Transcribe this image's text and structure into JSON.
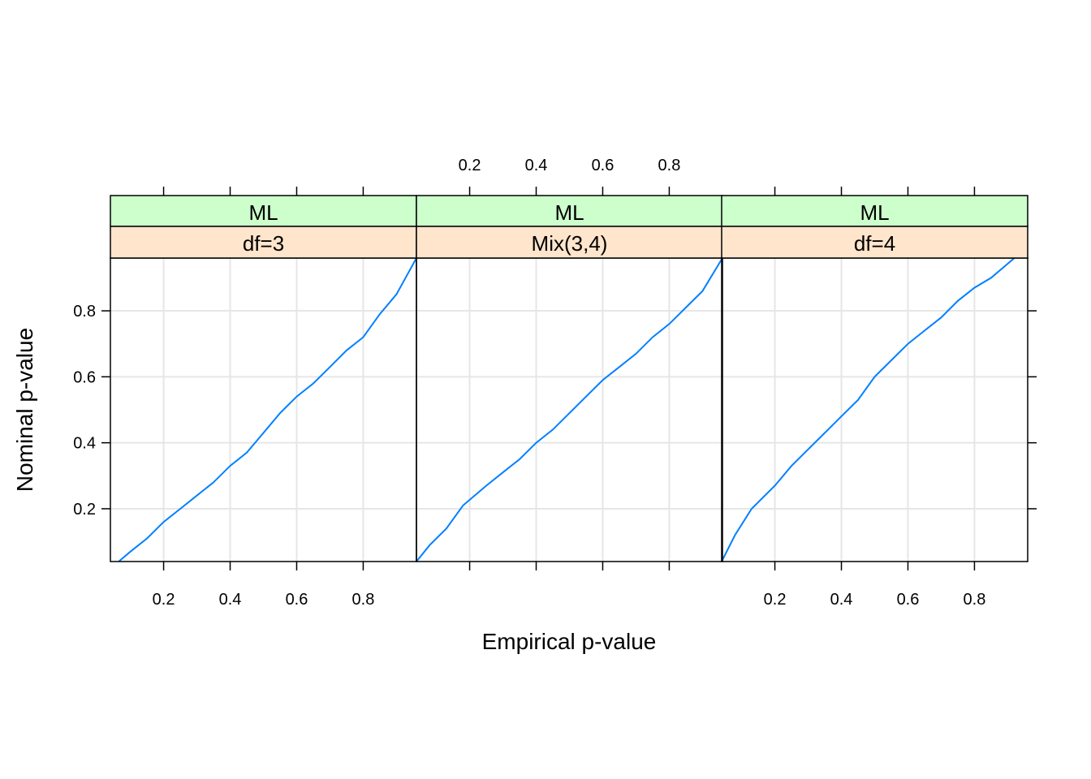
{
  "chart_data": {
    "type": "line",
    "xlabel": "Empirical p-value",
    "ylabel": "Nominal p-value",
    "xlim": [
      0.04,
      0.96
    ],
    "ylim": [
      0.04,
      0.96
    ],
    "x_ticks": [
      "0.2",
      "0.4",
      "0.6",
      "0.8"
    ],
    "y_ticks": [
      "0.2",
      "0.4",
      "0.6",
      "0.8"
    ],
    "grid": true,
    "strip_colors": {
      "outer": "#CCFFCC",
      "inner": "#FFE5CC"
    },
    "line_color": "#0080FF",
    "panels": [
      {
        "strip_outer": "ML",
        "strip_inner": "df=3",
        "points": [
          [
            0.065,
            0.04
          ],
          [
            0.1,
            0.07
          ],
          [
            0.15,
            0.11
          ],
          [
            0.2,
            0.16
          ],
          [
            0.25,
            0.2
          ],
          [
            0.3,
            0.24
          ],
          [
            0.35,
            0.28
          ],
          [
            0.4,
            0.33
          ],
          [
            0.45,
            0.37
          ],
          [
            0.5,
            0.43
          ],
          [
            0.55,
            0.49
          ],
          [
            0.6,
            0.54
          ],
          [
            0.65,
            0.58
          ],
          [
            0.7,
            0.63
          ],
          [
            0.75,
            0.68
          ],
          [
            0.8,
            0.72
          ],
          [
            0.85,
            0.79
          ],
          [
            0.9,
            0.85
          ],
          [
            0.96,
            0.96
          ]
        ]
      },
      {
        "strip_outer": "ML",
        "strip_inner": "Mix(3,4)",
        "points": [
          [
            0.04,
            0.04
          ],
          [
            0.08,
            0.09
          ],
          [
            0.13,
            0.14
          ],
          [
            0.18,
            0.21
          ],
          [
            0.25,
            0.27
          ],
          [
            0.3,
            0.31
          ],
          [
            0.35,
            0.35
          ],
          [
            0.4,
            0.4
          ],
          [
            0.45,
            0.44
          ],
          [
            0.5,
            0.49
          ],
          [
            0.55,
            0.54
          ],
          [
            0.6,
            0.59
          ],
          [
            0.65,
            0.63
          ],
          [
            0.7,
            0.67
          ],
          [
            0.75,
            0.72
          ],
          [
            0.8,
            0.76
          ],
          [
            0.85,
            0.81
          ],
          [
            0.9,
            0.86
          ],
          [
            0.96,
            0.96
          ]
        ]
      },
      {
        "strip_outer": "ML",
        "strip_inner": "df=4",
        "points": [
          [
            0.04,
            0.04
          ],
          [
            0.08,
            0.12
          ],
          [
            0.13,
            0.2
          ],
          [
            0.2,
            0.27
          ],
          [
            0.25,
            0.33
          ],
          [
            0.3,
            0.38
          ],
          [
            0.35,
            0.43
          ],
          [
            0.4,
            0.48
          ],
          [
            0.45,
            0.53
          ],
          [
            0.5,
            0.6
          ],
          [
            0.55,
            0.65
          ],
          [
            0.6,
            0.7
          ],
          [
            0.65,
            0.74
          ],
          [
            0.7,
            0.78
          ],
          [
            0.75,
            0.83
          ],
          [
            0.8,
            0.87
          ],
          [
            0.85,
            0.9
          ],
          [
            0.92,
            0.96
          ]
        ]
      }
    ]
  }
}
